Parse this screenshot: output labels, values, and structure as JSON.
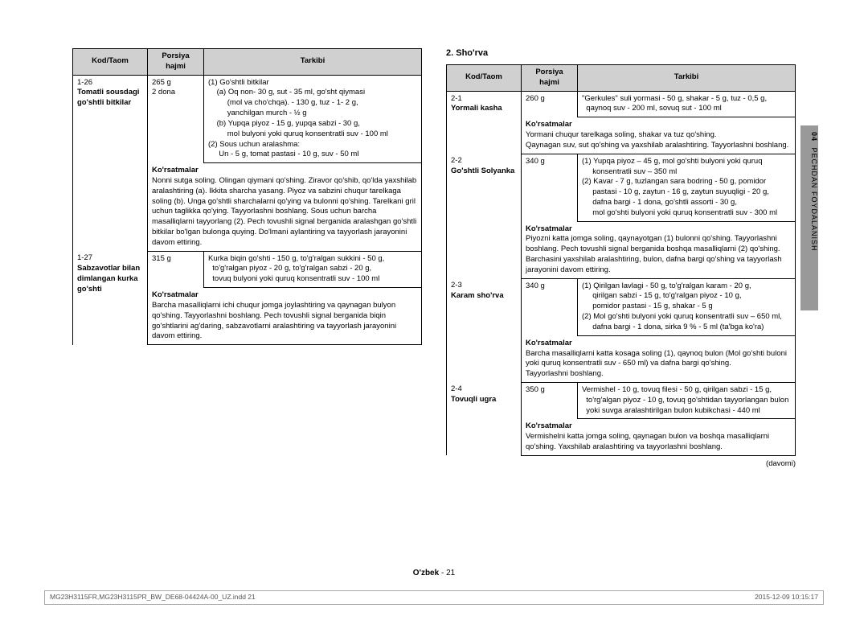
{
  "sideTab": {
    "num": "04",
    "label": "PECHDAN FOYDALANISH"
  },
  "left": {
    "headers": [
      "Kod/Taom",
      "Porsiya hajmi",
      "Tarkibi"
    ],
    "rows": [
      {
        "kod": "1-26",
        "kodBold": "Tomatli sousdagi go'shtli bitkilar",
        "por": "265 g\n2 dona",
        "tarkibi": "(1) Go'shtli bitkilar\n    (a) Oq non- 30 g, sut - 35 ml, go'sht qiymasi\n         (mol va cho'chqa). - 130 g, tuz - 1- 2 g,\n         yanchilgan murch - ½ g\n    (b) Yupqa piyoz - 15 g, yupqa sabzi - 30 g,\n         mol bulyoni yoki quruq konsentratli suv - 100 ml\n(2) Sous uchun aralashma:\n     Un - 5 g, tomat pastasi - 10 g, suv - 50 ml",
        "kors": "Nonni sutga soling. Olingan qiymani qo'shing. Ziravor qo'shib, qo'lda yaxshilab aralashtiring (a). Ikkita sharcha yasang. Piyoz va sabzini chuqur tarelkaga soling (b). Unga go'shtli sharchalarni qo'ying va bulonni qo'shing. Tarelkani gril uchun taglikka qo'ying. Tayyorlashni boshlang. Sous uchun barcha masalliqlarni tayyorlang (2). Pech tovushli signal berganida aralashgan go'shtli bitkilar bo'lgan bulonga quying. Do'lmani aylantiring va tayyorlash jarayonini davom ettiring."
      },
      {
        "kod": "1-27",
        "kodBold": "Sabzavotlar bilan dimlangan kurka go'shti",
        "por": "315 g",
        "tarkibi": "Kurka biqin go'shti - 150 g, to'g'ralgan sukkini - 50 g,\n  to'g'ralgan piyoz - 20 g, to'g'ralgan sabzi - 20 g,\n  tovuq bulyoni yoki quruq konsentratli suv - 100 ml",
        "kors": "Barcha masalliqlarni ichi chuqur jomga joylashtiring va qaynagan bulyon qo'shing. Tayyorlashni boshlang. Pech tovushli signal berganida biqin go'shtlarini ag'daring, sabzavotlarni aralashtiring va tayyorlash jarayonini davom ettiring."
      }
    ]
  },
  "right": {
    "title": "2. Sho'rva",
    "headers": [
      "Kod/Taom",
      "Porsiya hajmi",
      "Tarkibi"
    ],
    "rows": [
      {
        "kod": "2-1",
        "kodBold": "Yormali kasha",
        "por": "260 g",
        "tarkibi": "\"Gerkules\" suli yormasi - 50 g, shakar - 5 g, tuz - 0,5 g,\n  qaynoq suv - 200 ml, sovuq sut - 100 ml",
        "kors": "Yormani chuqur tarelkaga soling, shakar va tuz qo'shing.\nQaynagan suv, sut qo'shing va yaxshilab aralashtiring. Tayyorlashni boshlang."
      },
      {
        "kod": "2-2",
        "kodBold": "Go'shtli Solyanka",
        "por": "340 g",
        "tarkibi": "(1) Yupqa piyoz – 45 g, mol go'shti bulyoni yoki quruq\n     konsentratli suv – 350 ml\n(2) Kavar - 7 g, tuzlangan sara bodring - 50 g, pomidor\n     pastasi - 10 g, zaytun - 16 g, zaytun suyuqligi - 20 g,\n     dafna bargi - 1 dona, go'shtli assorti - 30 g,\n     mol go'shti bulyoni yoki quruq konsentratli suv - 300 ml",
        "kors": "Piyozni katta jomga soling, qaynayotgan (1) bulonni qo'shing. Tayyorlashni boshlang. Pech tovushli signal berganida boshqa masalliqlarni (2) qo'shing. Barchasini yaxshilab aralashtiring, bulon, dafna bargi qo'shing va tayyorlash jarayonini davom ettiring."
      },
      {
        "kod": "2-3",
        "kodBold": "Karam sho'rva",
        "por": "340 g",
        "tarkibi": "(1) Qirilgan lavlagi - 50 g, to'g'ralgan karam - 20 g,\n     qirilgan sabzi - 15 g, to'g'ralgan piyoz - 10 g,\n     pomidor pastasi - 15 g, shakar - 5 g\n(2) Mol go'shti bulyoni yoki quruq konsentratli suv – 650 ml,\n     dafna bargi - 1 dona, sirka 9 % - 5 ml (ta'bga ko'ra)",
        "kors": "Barcha masalliqlarni katta kosaga soling (1), qaynoq bulon (Mol go'shti buloni yoki quruq konsentratli suv - 650 ml) va dafna bargi qo'shing.\nTayyorlashni boshlang."
      },
      {
        "kod": "2-4",
        "kodBold": "Tovuqli ugra",
        "por": "350 g",
        "tarkibi": "Vermishel - 10 g, tovuq filesi - 50 g, qirilgan sabzi - 15 g,\n  to'rg'algan piyoz - 10 g, tovuq go'shtidan tayyorlangan bulon\n  yoki suvga aralashtirilgan bulon kubikchasi - 440 ml",
        "kors": "Vermishelni katta jomga soling, qaynagan bulon va boshqa masalliqlarni qo'shing. Yaxshilab aralashtiring va tayyorlashni boshlang."
      }
    ],
    "davomi": "(davomi)"
  },
  "footerCenter": {
    "lang": "O'zbek",
    "page": "21"
  },
  "footerBar": {
    "left": "MG23H3115FR,MG23H3115PR_BW_DE68-04424A-00_UZ.indd   21",
    "right": "2015-12-09        10:15:17"
  }
}
